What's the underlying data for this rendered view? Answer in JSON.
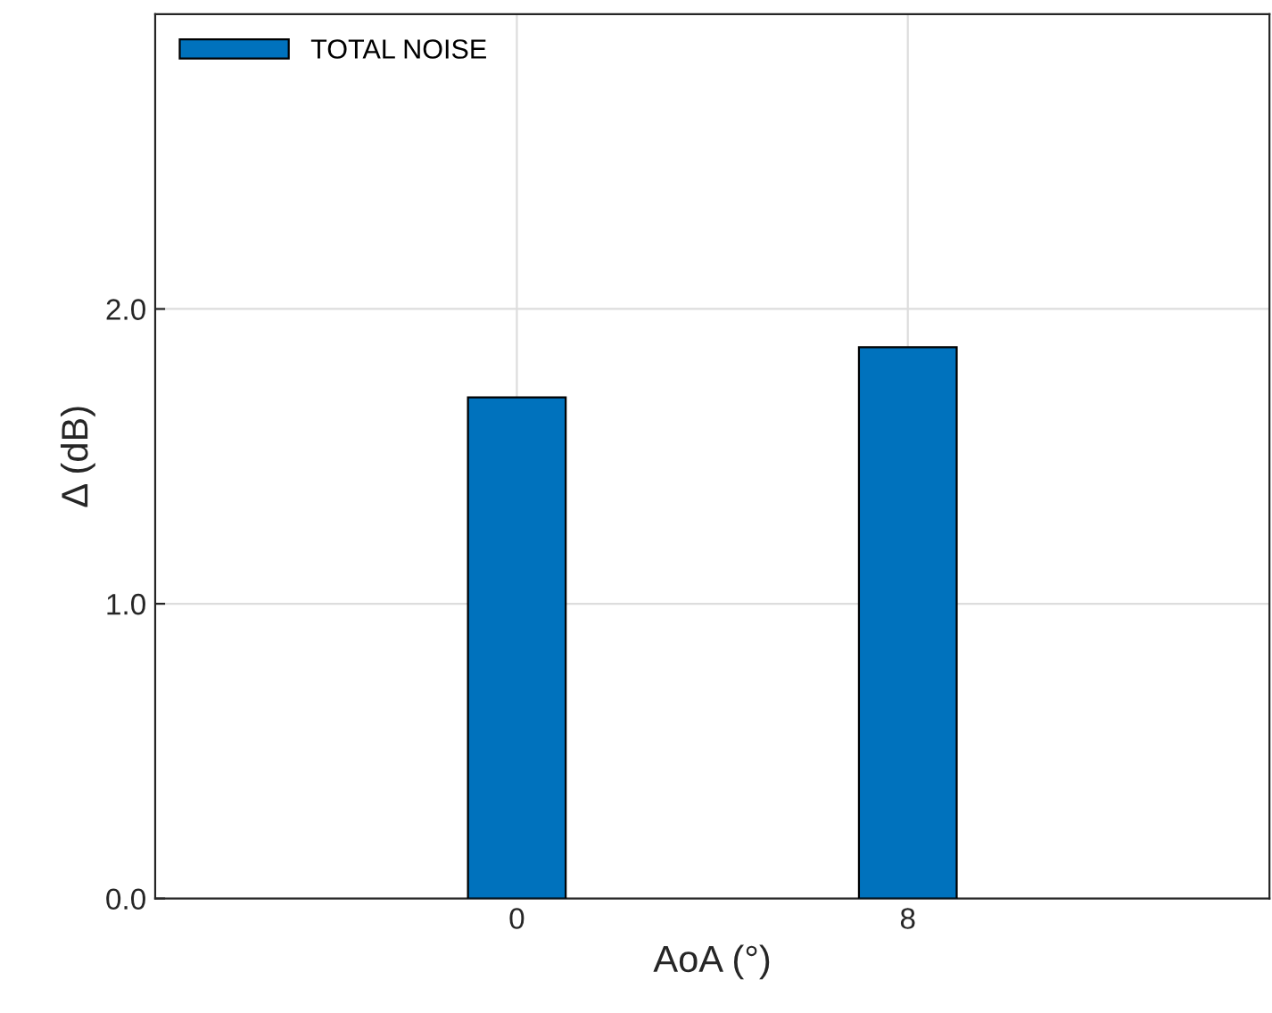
{
  "chart_data": {
    "type": "bar",
    "xlabel": "AoA (°)",
    "ylabel": "Δ (dB)",
    "x": [
      0,
      8
    ],
    "series": [
      {
        "name": "TOTAL NOISE",
        "color": "#0072bd",
        "values": [
          1.7,
          1.87
        ]
      }
    ],
    "xlim": [
      -7.4,
      15.4
    ],
    "xticks": [
      0,
      8
    ],
    "ylim": [
      0,
      3
    ],
    "yticks": [
      {
        "value": 0,
        "label": "0.0"
      },
      {
        "value": 1,
        "label": "1.0"
      },
      {
        "value": 2,
        "label": "2.0"
      }
    ],
    "grid": true,
    "legend": "top left"
  }
}
